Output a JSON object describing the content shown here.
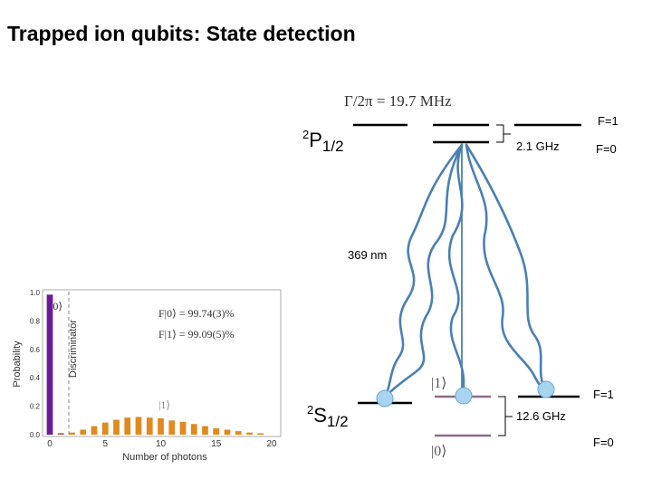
{
  "title": "Trapped ion qubits: State detection",
  "diagram": {
    "linewidth_label": "Γ/2π = 19.7 MHz",
    "p_level": {
      "sup": "2",
      "base": "P",
      "sub": "1/2"
    },
    "s_level": {
      "sup": "2",
      "base": "S",
      "sub": "1/2"
    },
    "p_hyperfine": {
      "upper": "F=1",
      "lower": "F=0",
      "splitting": "2.1 GHz"
    },
    "s_hyperfine": {
      "upper": "F=1",
      "lower": "F=0",
      "splitting": "12.6 GHz"
    },
    "wavelength": "369 nm",
    "ket_one": "|1⟩",
    "ket_zero": "|0⟩",
    "colors": {
      "photon": "#4a7fb5",
      "ion": "#a8d4f0",
      "qubit_level": "#8e6c8a",
      "level": "#000000"
    }
  },
  "histogram": {
    "ylabel": "Probability",
    "discriminator_label": "Discriminator",
    "xlabel": "Number of photons",
    "ket_zero": "|0⟩",
    "ket_one": "|1⟩",
    "fidelity_zero": "F|0⟩ = 99.74(3)%",
    "fidelity_one": "F|1⟩ = 99.09(5)%",
    "x_ticks": [
      "0",
      "5",
      "10",
      "15",
      "20"
    ],
    "y_ticks": [
      "1.0",
      "0.8",
      "0.6",
      "0.4",
      "0.2",
      "0.0"
    ],
    "colors": {
      "zero": "#6a1b9a",
      "one": "#e08a1e"
    }
  },
  "chart_data": {
    "type": "bar",
    "xlabel": "Number of photons",
    "ylabel": "Probability",
    "ylim": [
      0,
      1.0
    ],
    "xlim": [
      -0.5,
      20.5
    ],
    "series": [
      {
        "name": "|0⟩",
        "x": [
          0,
          1
        ],
        "values": [
          0.985,
          0.01
        ]
      },
      {
        "name": "|1⟩",
        "x": [
          1,
          2,
          3,
          4,
          5,
          6,
          7,
          8,
          9,
          10,
          11,
          12,
          13,
          14,
          15,
          16,
          17,
          18,
          19
        ],
        "values": [
          0.004,
          0.015,
          0.035,
          0.06,
          0.085,
          0.105,
          0.12,
          0.125,
          0.12,
          0.115,
          0.1,
          0.09,
          0.075,
          0.06,
          0.045,
          0.035,
          0.025,
          0.015,
          0.01
        ]
      }
    ],
    "discriminator_x": 1.5
  }
}
